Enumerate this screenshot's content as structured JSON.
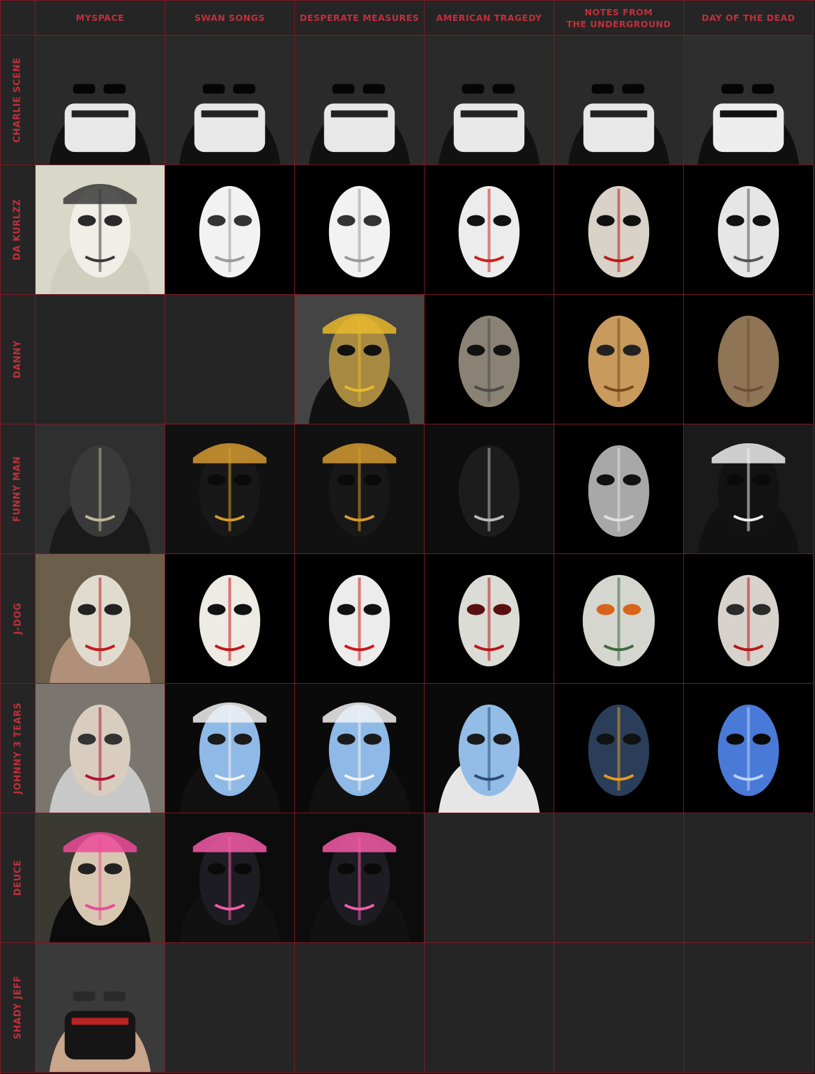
{
  "columns": [
    "MySpace",
    "Swan Songs",
    "Desperate Measures",
    "American Tragedy",
    "Notes from\nthe Underground",
    "Day of the Dead"
  ],
  "rows": [
    "Charlie Scene",
    "Da Kurlzz",
    "Danny",
    "Funny Man",
    "J-Dog",
    "Johnny 3 Tears",
    "Deuce",
    "Shady Jeff"
  ],
  "colors": {
    "accent": "#c0303c",
    "grid_line": "#7a1a22",
    "cell_bg": "#252525",
    "photo_bg": "#070707"
  },
  "masks": [
    [
      "bandana-sunglasses",
      "bandana-sunglasses",
      "bandana-sunglasses",
      "bandana-sunglasses",
      "bandana-sunglasses",
      "bandana-skull"
    ],
    [
      "white-mask-cap",
      "white-split-mask",
      "white-split-mask",
      "white-cracked-mask",
      "half-burned-mask",
      "half-rotten-mask"
    ],
    [
      null,
      null,
      "gold-mask-cap",
      "silver-mask",
      "gold-steampunk-mask",
      "mesh-mask"
    ],
    [
      "black-mesh-hood",
      "black-mask-fm",
      "black-mask-fm",
      "black-mask-undead",
      "luchador-mask",
      "black-mask-raiders"
    ],
    [
      "white-mask-dollar",
      "white-mask-lv",
      "white-mask-bleeding",
      "white-mask-red-eyes",
      "gasmask-pyramid",
      "white-mask-dollar-mouth"
    ],
    [
      "hockey-mask-hood",
      "blue-mask-cap",
      "blue-mask-cap",
      "blue-mask-hood",
      "blue-flame-mask",
      "blue-chrome-mask"
    ],
    [
      "hockey-mask-camo-cap",
      "pink-mouth-mask-cap",
      "pink-mouth-mask-cap",
      null,
      null,
      null
    ],
    [
      "bandana-face",
      null,
      null,
      null,
      null,
      null
    ]
  ]
}
